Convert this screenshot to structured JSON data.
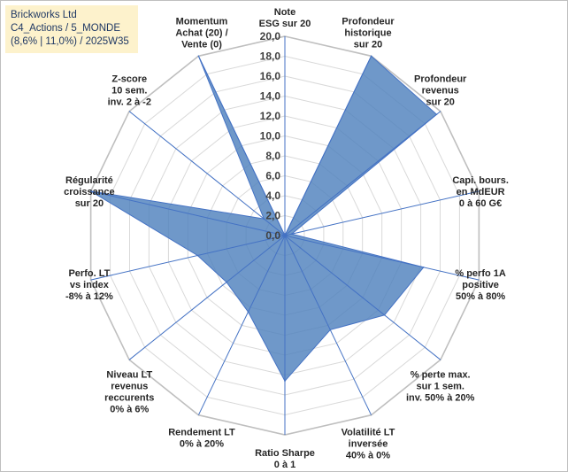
{
  "header": {
    "line1": "Brickworks Ltd",
    "line2": "C4_Actions / 5_MONDE",
    "line3": "(8,6% | 11,0%) / 2025W35"
  },
  "colors": {
    "fill": "#4f81bd",
    "stroke": "#4472c4",
    "grid": "#d9d9d9",
    "title_bg": "#fdf2cc"
  },
  "chart_data": {
    "type": "radar",
    "rmin": 0,
    "rmax": 20,
    "tick_step": 2,
    "tick_labels": [
      "0,0",
      "2,0",
      "4,0",
      "6,0",
      "8,0",
      "10,0",
      "12,0",
      "14,0",
      "16,0",
      "18,0",
      "20,0"
    ],
    "axes": [
      {
        "label": [
          "Note",
          "ESG sur 20"
        ],
        "value": 0
      },
      {
        "label": [
          "Profondeur",
          "historique",
          "sur 20"
        ],
        "value": 20
      },
      {
        "label": [
          "Profondeur",
          "revenus",
          "sur 20"
        ],
        "value": 19.5
      },
      {
        "label": [
          "Capi. bours.",
          "en MdEUR",
          "0 à 60 G€"
        ],
        "value": 0.7
      },
      {
        "label": [
          "% perfo 1A",
          "positive",
          "50% à 80%"
        ],
        "value": 14.3
      },
      {
        "label": [
          "% perte max.",
          "sur 1 sem.",
          "inv. 50% à 20%"
        ],
        "value": 12.8
      },
      {
        "label": [
          "Volatilité LT",
          "inversée",
          "40% à 0%"
        ],
        "value": 10.5
      },
      {
        "label": [
          "Ratio Sharpe",
          "0 à 1"
        ],
        "value": 14.6
      },
      {
        "label": [
          "Rendement LT",
          "0% à 20%"
        ],
        "value": 8.5
      },
      {
        "label": [
          "Niveau LT",
          "revenus",
          "reccurents",
          "0% à 6%"
        ],
        "value": 7.5
      },
      {
        "label": [
          "Perfo. LT",
          "vs index",
          "-8% à 12%"
        ],
        "value": 9.0
      },
      {
        "label": [
          "Régularité",
          "croissance",
          "sur 20"
        ],
        "value": 20
      },
      {
        "label": [
          "Z-score",
          "10 sem.",
          "inv. 2 à -2"
        ],
        "value": 2.7
      },
      {
        "label": [
          "Momentum",
          "Achat (20) /",
          "Vente (0)"
        ],
        "value": 20
      }
    ]
  }
}
